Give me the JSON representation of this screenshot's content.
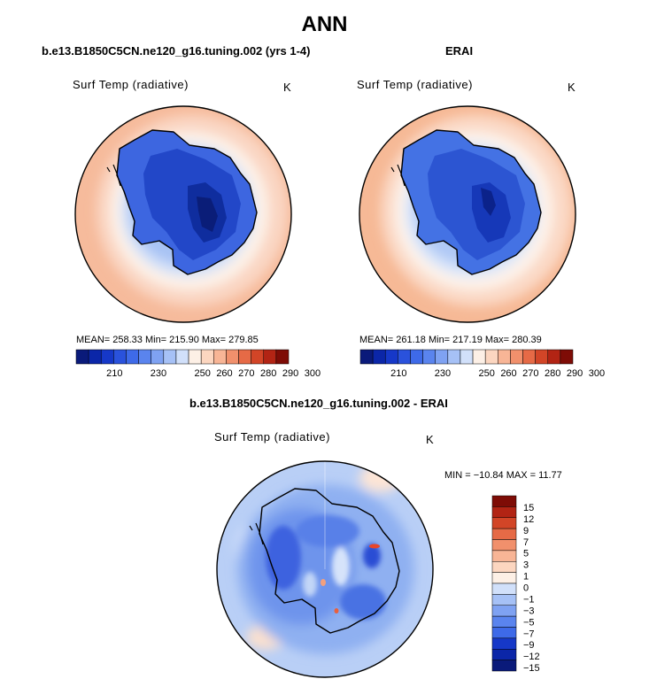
{
  "chart_data": [
    {
      "type": "heatmap",
      "projection": "south-polar-stereographic",
      "title": "ANN",
      "subtitle": "b.e13.B1850C5CN.ne120_g16.tuning.002 (yrs 1-4)",
      "field_label": "Surf Temp (radiative)",
      "units": "K",
      "stats": {
        "mean": "258.33",
        "min": "215.90",
        "max": "279.85"
      },
      "stats_text": "MEAN= 258.33   Min= 215.90   Max= 279.85",
      "colorbar": {
        "levels": [
          210,
          220,
          230,
          240,
          250,
          260,
          270,
          280,
          290,
          300
        ],
        "tick_labels": [
          "210",
          "230",
          "250",
          "260",
          "270",
          "280",
          "290",
          "300"
        ],
        "colors": [
          "#0a1a7a",
          "#0b26a8",
          "#1638c8",
          "#2a52dc",
          "#3e6ae8",
          "#5a84ee",
          "#7fa2f2",
          "#a6c1f6",
          "#d1e0fa",
          "#fdf0e6",
          "#fcd6c0",
          "#f8b596",
          "#f1906c",
          "#e66a46",
          "#d24527",
          "#b22414",
          "#7e0c06"
        ]
      }
    },
    {
      "type": "heatmap",
      "projection": "south-polar-stereographic",
      "subtitle": "ERAI",
      "field_label": "Surf Temp (radiative)",
      "units": "K",
      "stats": {
        "mean": "261.18",
        "min": "217.19",
        "max": "280.39"
      },
      "stats_text": "MEAN= 261.18   Min= 217.19   Max= 280.39",
      "colorbar": {
        "levels": [
          210,
          220,
          230,
          240,
          250,
          260,
          270,
          280,
          290,
          300
        ],
        "tick_labels": [
          "210",
          "230",
          "250",
          "260",
          "270",
          "280",
          "290",
          "300"
        ]
      }
    },
    {
      "type": "heatmap",
      "projection": "south-polar-stereographic",
      "subtitle": "b.e13.B1850C5CN.ne120_g16.tuning.002 - ERAI",
      "field_label": "Surf Temp (radiative)",
      "units": "K",
      "stats": {
        "min": "-10.84",
        "max": "11.77"
      },
      "stats_text": "MIN = −10.84  MAX =   11.77",
      "colorbar": {
        "levels": [
          15,
          12,
          9,
          7,
          5,
          3,
          1,
          0,
          -1,
          -3,
          -5,
          -7,
          -9,
          -12,
          -15
        ],
        "tick_labels": [
          "15",
          "12",
          "9",
          "7",
          "5",
          "3",
          "1",
          "0",
          "−1",
          "−3",
          "−5",
          "−7",
          "−9",
          "−12",
          "−15"
        ],
        "colors": [
          "#7e0c06",
          "#b22414",
          "#d24527",
          "#e66a46",
          "#f1906c",
          "#f8b596",
          "#fcd6c0",
          "#fdf0e6",
          "#d1e0fa",
          "#a6c1f6",
          "#7fa2f2",
          "#5a84ee",
          "#3e6ae8",
          "#1638c8",
          "#0b26a8",
          "#0a1a7a"
        ]
      }
    }
  ]
}
